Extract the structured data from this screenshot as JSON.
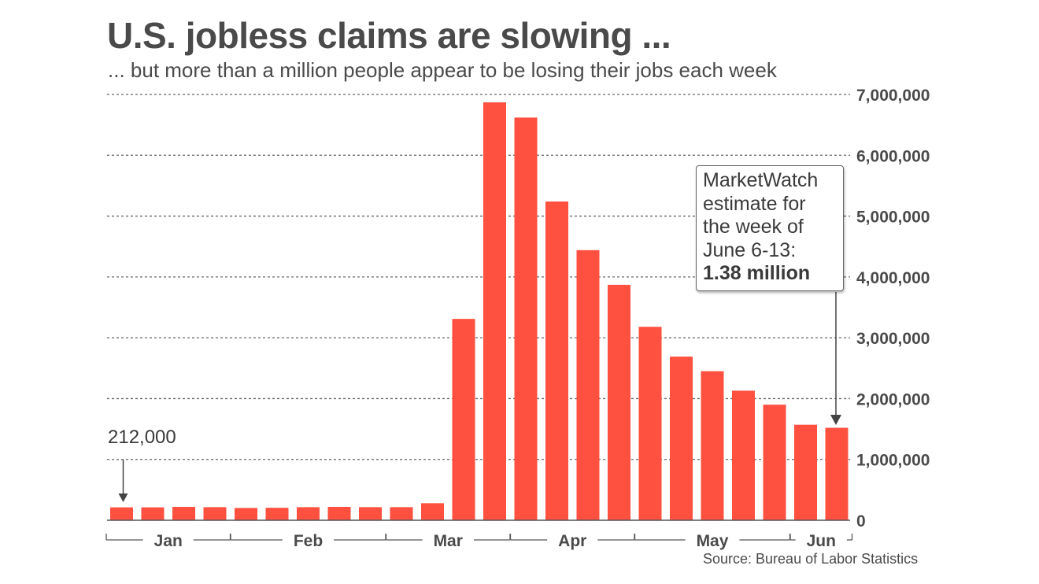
{
  "title": "U.S. jobless claims are slowing ...",
  "subtitle": "... but more than a million people appear to be losing their jobs each week",
  "source": "Source: Bureau of Labor Statistics",
  "colors": {
    "bar": "#ff5040",
    "grid": "#666666",
    "text": "#4a4a4a"
  },
  "callout": {
    "lines": [
      "MarketWatch",
      "estimate for",
      "the week of",
      "June 6-13:"
    ],
    "emphasis": "1.38 million"
  },
  "first_point_label": "212,000",
  "chart_data": {
    "type": "bar",
    "title": "U.S. jobless claims are slowing ...",
    "xlabel": "",
    "ylabel": "",
    "ylim": [
      0,
      7000000
    ],
    "y_ticks": [
      0,
      1000000,
      2000000,
      3000000,
      4000000,
      5000000,
      6000000,
      7000000
    ],
    "y_tick_labels": [
      "0",
      "1,000,000",
      "2,000,000",
      "3,000,000",
      "4,000,000",
      "5,000,000",
      "6,000,000",
      "7,000,000"
    ],
    "y_axis_position": "right",
    "grid": "dotted horizontal",
    "months": [
      {
        "label": "Jan",
        "first": 0,
        "last": 3
      },
      {
        "label": "Feb",
        "first": 4,
        "last": 8
      },
      {
        "label": "Mar",
        "first": 9,
        "last": 12
      },
      {
        "label": "Apr",
        "first": 13,
        "last": 16
      },
      {
        "label": "May",
        "first": 17,
        "last": 21
      },
      {
        "label": "Jun",
        "first": 22,
        "last": 23
      }
    ],
    "values": [
      212000,
      212000,
      220000,
      215000,
      202000,
      205000,
      215000,
      220000,
      215000,
      215000,
      280000,
      3310000,
      6870000,
      6620000,
      5240000,
      4440000,
      3870000,
      3180000,
      2690000,
      2450000,
      2130000,
      1900000,
      1570000,
      1520000
    ],
    "annotations": [
      {
        "text": "212,000",
        "bar_index": 0
      },
      {
        "text": "MarketWatch estimate for the week of June 6-13: 1.38 million",
        "bar_index": 23
      }
    ]
  }
}
